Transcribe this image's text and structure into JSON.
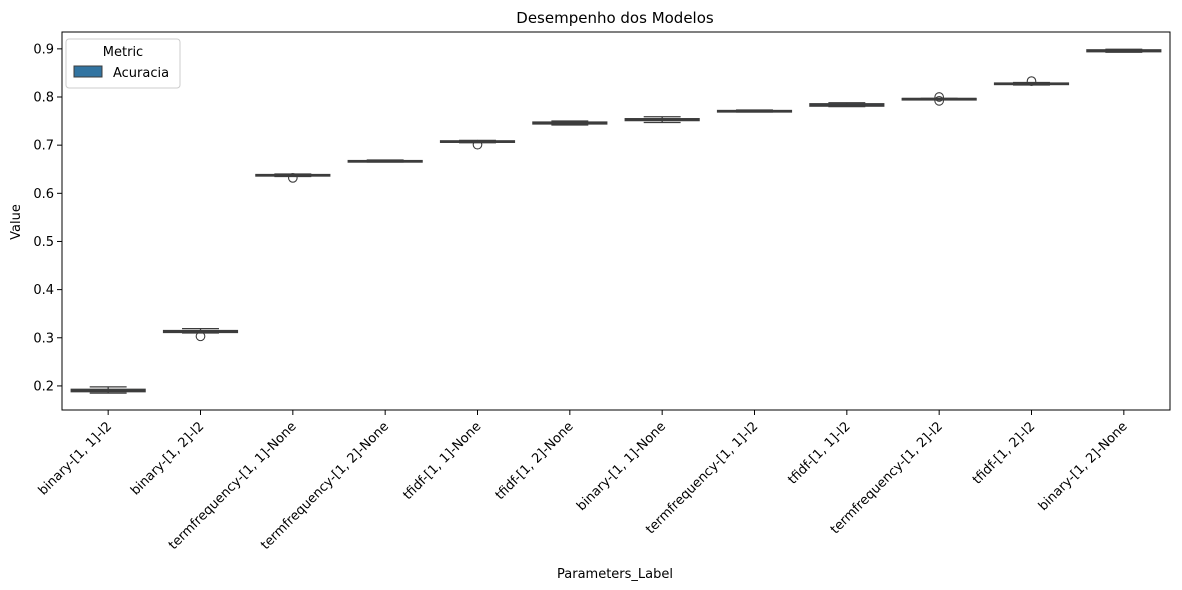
{
  "chart_data": {
    "type": "box",
    "title": "Desempenho dos Modelos",
    "xlabel": "Parameters_Label",
    "ylabel": "Value",
    "ylim": [
      0.15,
      0.935
    ],
    "yticks": [
      0.2,
      0.3,
      0.4,
      0.5,
      0.6,
      0.7,
      0.8,
      0.9
    ],
    "ytick_labels": [
      "0.2",
      "0.3",
      "0.4",
      "0.5",
      "0.6",
      "0.7",
      "0.8",
      "0.9"
    ],
    "grid": false,
    "legend": {
      "title": "Metric",
      "position": "top-left",
      "entries": [
        {
          "name": "Acuracia",
          "color": "#3274a1"
        }
      ]
    },
    "box_color": "#3274a1",
    "categories": [
      "binary-[1, 1]-l2",
      "binary-[1, 2]-l2",
      "termfrequency-[1, 1]-None",
      "termfrequency-[1, 2]-None",
      "tfidf-[1, 1]-None",
      "tfidf-[1, 2]-None",
      "binary-[1, 1]-None",
      "termfrequency-[1, 1]-l2",
      "tfidf-[1, 1]-l2",
      "termfrequency-[1, 2]-l2",
      "tfidf-[1, 2]-l2",
      "binary-[1, 2]-None"
    ],
    "series": [
      {
        "name": "Acuracia",
        "boxes": [
          {
            "whisker_low": 0.185,
            "q1": 0.188,
            "median": 0.19,
            "q3": 0.193,
            "whisker_high": 0.198,
            "outliers": []
          },
          {
            "whisker_low": 0.31,
            "q1": 0.311,
            "median": 0.313,
            "q3": 0.315,
            "whisker_high": 0.319,
            "outliers": [
              0.303
            ]
          },
          {
            "whisker_low": 0.635,
            "q1": 0.636,
            "median": 0.637,
            "q3": 0.639,
            "whisker_high": 0.64,
            "outliers": [
              0.632
            ]
          },
          {
            "whisker_low": 0.665,
            "q1": 0.666,
            "median": 0.667,
            "q3": 0.668,
            "whisker_high": 0.669,
            "outliers": []
          },
          {
            "whisker_low": 0.705,
            "q1": 0.706,
            "median": 0.707,
            "q3": 0.709,
            "whisker_high": 0.71,
            "outliers": [
              0.701
            ]
          },
          {
            "whisker_low": 0.742,
            "q1": 0.744,
            "median": 0.746,
            "q3": 0.748,
            "whisker_high": 0.75,
            "outliers": []
          },
          {
            "whisker_low": 0.747,
            "q1": 0.751,
            "median": 0.753,
            "q3": 0.755,
            "whisker_high": 0.759,
            "outliers": []
          },
          {
            "whisker_low": 0.769,
            "q1": 0.77,
            "median": 0.771,
            "q3": 0.772,
            "whisker_high": 0.773,
            "outliers": []
          },
          {
            "whisker_low": 0.78,
            "q1": 0.781,
            "median": 0.783,
            "q3": 0.786,
            "whisker_high": 0.788,
            "outliers": []
          },
          {
            "whisker_low": 0.795,
            "q1": 0.795,
            "median": 0.796,
            "q3": 0.797,
            "whisker_high": 0.797,
            "outliers": [
              0.792,
              0.8
            ]
          },
          {
            "whisker_low": 0.825,
            "q1": 0.826,
            "median": 0.828,
            "q3": 0.829,
            "whisker_high": 0.83,
            "outliers": [
              0.833
            ]
          },
          {
            "whisker_low": 0.893,
            "q1": 0.894,
            "median": 0.896,
            "q3": 0.898,
            "whisker_high": 0.899,
            "outliers": []
          }
        ]
      }
    ]
  }
}
